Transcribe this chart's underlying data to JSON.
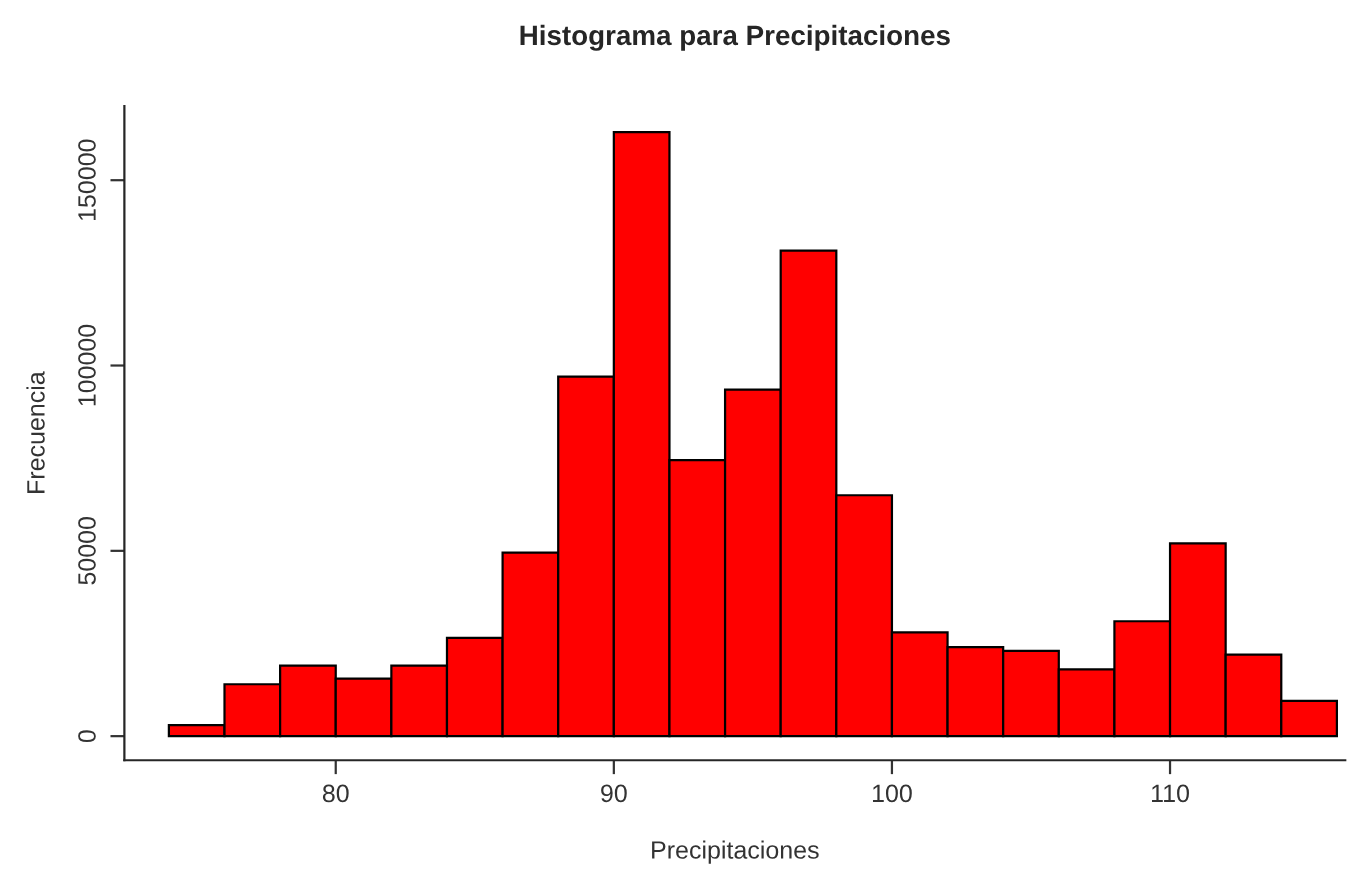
{
  "chart_data": {
    "type": "histogram",
    "title": "Histograma para Precipitaciones",
    "xlabel": "Precipitaciones",
    "ylabel": "Frecuencia",
    "bins": [
      74,
      76,
      78,
      80,
      82,
      84,
      86,
      88,
      90,
      92,
      94,
      96,
      98,
      100,
      102,
      104,
      106,
      108,
      110,
      112,
      114,
      116
    ],
    "values": [
      3000,
      14000,
      19000,
      15500,
      19000,
      26500,
      49500,
      97000,
      163000,
      74500,
      93500,
      131000,
      65000,
      28000,
      24000,
      23000,
      18000,
      31000,
      52000,
      22000,
      9500
    ],
    "color": "#ff0000",
    "xlim": [
      72.4,
      116.3
    ],
    "xticks": [
      80,
      90,
      100,
      110
    ],
    "ylim": [
      -6500,
      170000
    ],
    "yticks": [
      0,
      50000,
      100000,
      150000
    ],
    "grid": false
  }
}
